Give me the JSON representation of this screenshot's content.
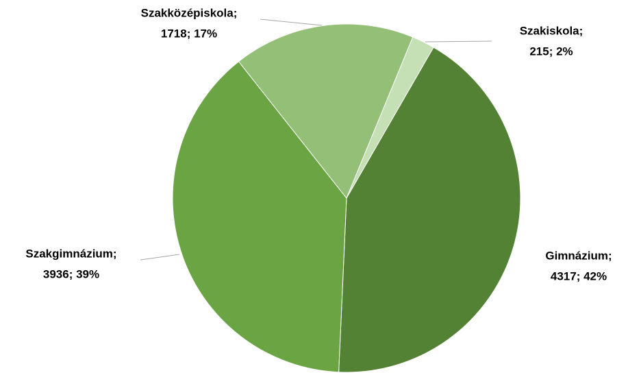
{
  "chart_data": {
    "type": "pie",
    "categories": [
      "Gimnázium;",
      "Szakgimnázium;",
      "Szakközépiskola;",
      "Szakiskola;"
    ],
    "values": [
      4317,
      3936,
      1718,
      215
    ],
    "value_labels": [
      "4317; 42%",
      "3936; 39%",
      "1718; 17%",
      "215; 2%"
    ],
    "colors": [
      "#548235",
      "#6aa443",
      "#93bf76",
      "#c5e0b4"
    ]
  }
}
